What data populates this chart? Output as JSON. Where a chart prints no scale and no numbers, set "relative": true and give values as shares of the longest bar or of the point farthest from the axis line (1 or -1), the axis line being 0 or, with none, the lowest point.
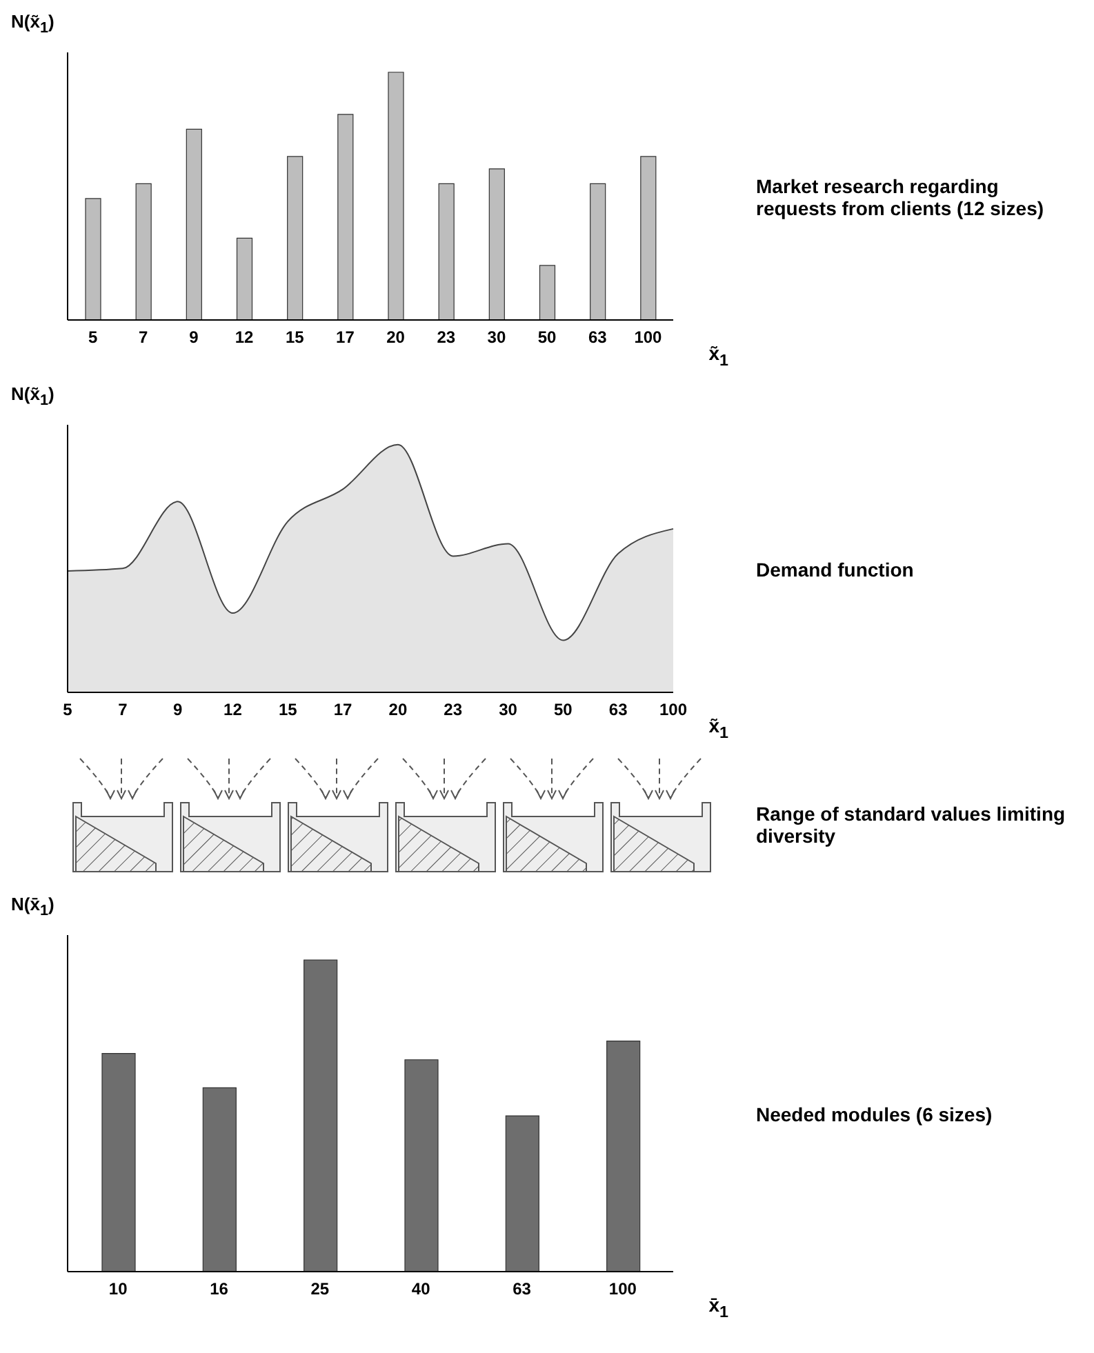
{
  "chart_data": [
    {
      "type": "bar",
      "relative": true,
      "ylabel": "N(x̃$_{1}$)",
      "xlabel": "x̃$_{1}$",
      "categories": [
        "5",
        "7",
        "9",
        "12",
        "15",
        "17",
        "20",
        "23",
        "30",
        "50",
        "63",
        "100"
      ],
      "values": [
        0.49,
        0.55,
        0.77,
        0.33,
        0.66,
        0.83,
        1,
        0.55,
        0.61,
        0.22,
        0.55,
        0.66
      ],
      "color": "#bdbdbd",
      "annotations": [
        "Market research regarding requests from clients (12 sizes)"
      ]
    },
    {
      "type": "area",
      "relative": true,
      "ylabel": "N(x̃$_{1}$)",
      "xlabel": "x̃$_{1}$",
      "categories": [
        "5",
        "7",
        "9",
        "12",
        "15",
        "17",
        "20",
        "23",
        "30",
        "50",
        "63",
        "100"
      ],
      "values": [
        0.49,
        0.5,
        0.77,
        0.32,
        0.69,
        0.82,
        1,
        0.55,
        0.6,
        0.21,
        0.56,
        0.66
      ],
      "color": "#e4e4e4",
      "annotations": [
        "Demand function"
      ]
    },
    {
      "type": "other",
      "annotations": [
        "Range of standard values limiting diversity"
      ]
    },
    {
      "type": "bar",
      "relative": true,
      "ylabel": "N(x̄$_{1}$)",
      "xlabel": "x̄$_{1}$",
      "categories": [
        "10",
        "16",
        "25",
        "40",
        "63",
        "100"
      ],
      "values": [
        0.7,
        0.59,
        1,
        0.68,
        0.5,
        0.74
      ],
      "color": "#6e6e6e",
      "annotations": [
        "Needed modules (6 sizes)"
      ]
    }
  ]
}
